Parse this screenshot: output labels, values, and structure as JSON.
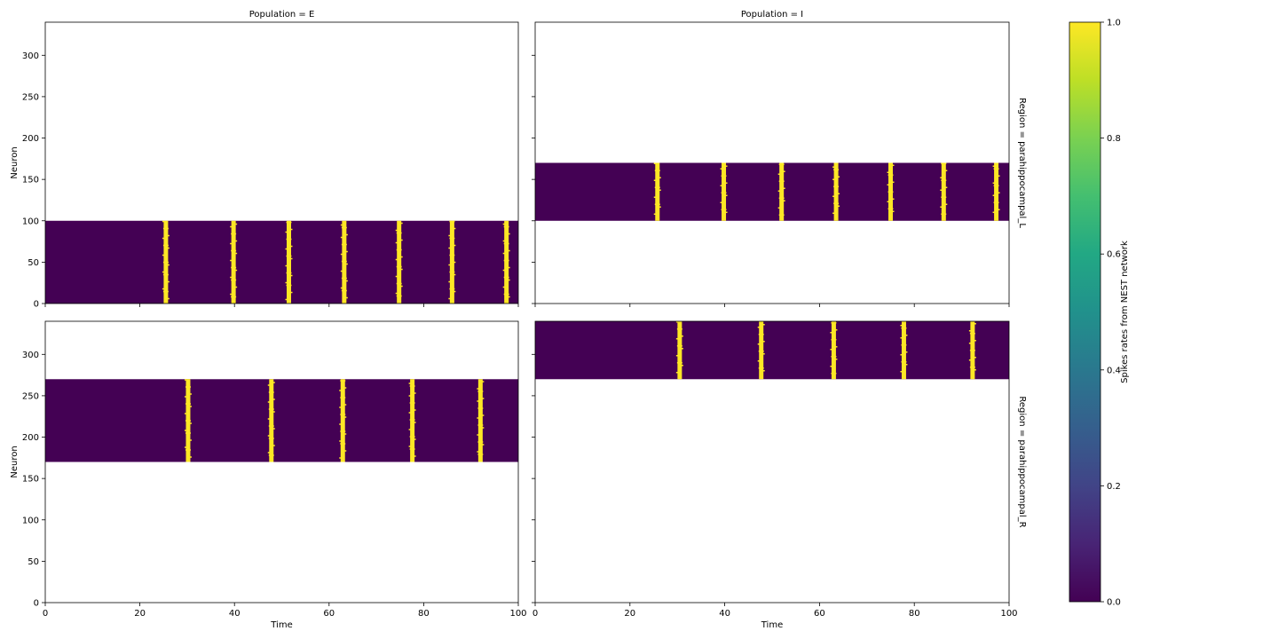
{
  "figure": {
    "col_titles": [
      "Population = E",
      "Population = I"
    ],
    "row_titles": [
      "Region = parahippocampal_L",
      "Region = parahippocampal_R"
    ],
    "xlabel": "Time",
    "ylabel": "Neuron",
    "x_ticks": [
      "0",
      "20",
      "40",
      "60",
      "80",
      "100"
    ],
    "y_ticks": [
      "0",
      "50",
      "100",
      "150",
      "200",
      "250",
      "300"
    ],
    "colorbar": {
      "label": "Spikes rates from NEST network",
      "ticks": [
        "0.0",
        "0.2",
        "0.4",
        "0.6",
        "0.8",
        "1.0"
      ],
      "colormap": "viridis",
      "range": [
        0,
        1
      ]
    }
  },
  "colors": {
    "low": "#440154",
    "high": "#fde725"
  },
  "chart_data": [
    {
      "type": "heatmap",
      "title": "Population = E",
      "region": "parahippocampal_L",
      "xlabel": "",
      "ylabel": "Neuron",
      "xlim": [
        0,
        100
      ],
      "ylim": [
        0,
        340
      ],
      "neuron_range": [
        0,
        100
      ],
      "spike_times": [
        25.5,
        39.8,
        51.5,
        63.2,
        74.8,
        86.0,
        97.5
      ]
    },
    {
      "type": "heatmap",
      "title": "Population = I",
      "region": "parahippocampal_L",
      "xlabel": "",
      "ylabel": "",
      "xlim": [
        0,
        100
      ],
      "ylim": [
        0,
        340
      ],
      "neuron_range": [
        100,
        170
      ],
      "spike_times": [
        25.8,
        39.8,
        52.0,
        63.5,
        75.0,
        86.2,
        97.3
      ]
    },
    {
      "type": "heatmap",
      "title": "",
      "region": "parahippocampal_R",
      "xlabel": "Time",
      "ylabel": "Neuron",
      "xlim": [
        0,
        100
      ],
      "ylim": [
        0,
        340
      ],
      "neuron_range": [
        170,
        270
      ],
      "spike_times": [
        30.2,
        47.8,
        62.9,
        77.6,
        92.0
      ]
    },
    {
      "type": "heatmap",
      "title": "",
      "region": "parahippocampal_R",
      "xlabel": "Time",
      "ylabel": "",
      "xlim": [
        0,
        100
      ],
      "ylim": [
        0,
        340
      ],
      "neuron_range": [
        270,
        340
      ],
      "spike_times": [
        30.5,
        47.7,
        63.0,
        77.8,
        92.3
      ]
    }
  ]
}
